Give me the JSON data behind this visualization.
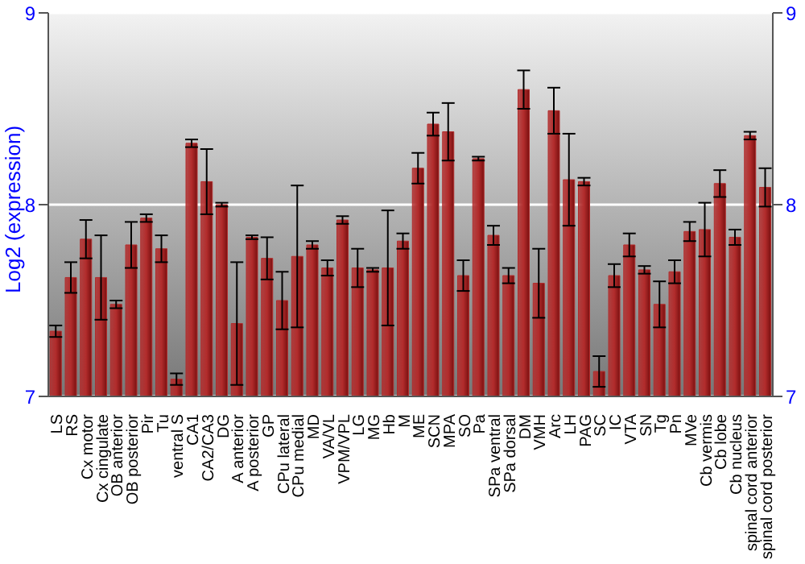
{
  "chart_data": {
    "type": "bar",
    "ylabel": "Log2 (expression)",
    "categories": [
      "LS",
      "RS",
      "Cx motor",
      "Cx cingulate",
      "OB anterior",
      "OB posterior",
      "Pir",
      "Tu",
      "ventral S",
      "CA1",
      "CA2/CA3",
      "DG",
      "A anterior",
      "A posterior",
      "GP",
      "CPu lateral",
      "CPu medial",
      "MD",
      "VA/VL",
      "VPM/VPL",
      "LG",
      "MG",
      "Hb",
      "M",
      "ME",
      "SCN",
      "MPA",
      "SO",
      "Pa",
      "SPa ventral",
      "SPa dorsal",
      "DM",
      "VMH",
      "Arc",
      "LH",
      "PAG",
      "SC",
      "IC",
      "VTA",
      "SN",
      "Tg",
      "Pn",
      "MVe",
      "Cb vermis",
      "Cb lobe",
      "Cb nucleus",
      "spinal cord anterior",
      "spinal cord posterior"
    ],
    "values": [
      7.34,
      7.62,
      7.82,
      7.62,
      7.48,
      7.79,
      7.93,
      7.77,
      7.09,
      8.32,
      8.12,
      8.0,
      7.38,
      7.83,
      7.72,
      7.5,
      7.73,
      7.79,
      7.67,
      7.92,
      7.67,
      7.66,
      7.67,
      7.81,
      8.19,
      8.42,
      8.38,
      7.63,
      8.24,
      7.84,
      7.63,
      8.6,
      7.59,
      8.49,
      8.13,
      8.12,
      7.13,
      7.63,
      7.79,
      7.66,
      7.48,
      7.65,
      7.86,
      7.87,
      8.11,
      7.83,
      8.36,
      8.09
    ],
    "errors": [
      0.03,
      0.08,
      0.1,
      0.22,
      0.02,
      0.12,
      0.02,
      0.07,
      0.03,
      0.02,
      0.17,
      0.01,
      0.32,
      0.01,
      0.11,
      0.15,
      0.37,
      0.02,
      0.04,
      0.02,
      0.1,
      0.01,
      0.3,
      0.04,
      0.08,
      0.06,
      0.15,
      0.08,
      0.01,
      0.05,
      0.04,
      0.1,
      0.18,
      0.12,
      0.24,
      0.02,
      0.08,
      0.06,
      0.06,
      0.02,
      0.12,
      0.06,
      0.05,
      0.14,
      0.07,
      0.04,
      0.02,
      0.1
    ],
    "color": "#b22c2c",
    "ylim": [
      7,
      9
    ],
    "yticks": [
      7,
      8,
      9
    ],
    "y2lim": [
      7,
      9
    ],
    "y2ticks": [
      7,
      8,
      9
    ],
    "grid": "y"
  }
}
